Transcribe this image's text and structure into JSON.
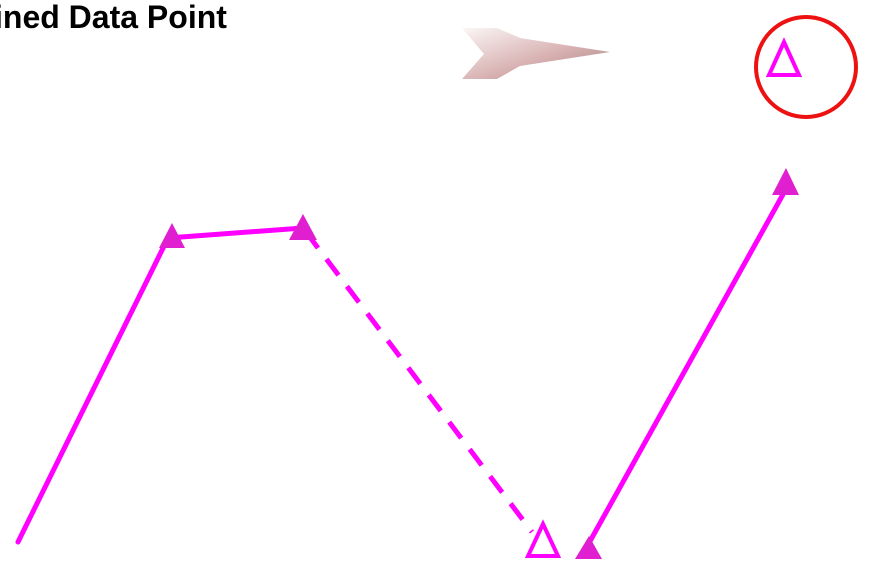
{
  "title": "ined Data Point",
  "colors": {
    "path": "#ff00ff",
    "marker_fill": "#e020d0",
    "highlight": "#ee1111",
    "arrow_light": "#f8f0f0",
    "arrow_dark": "#b89090"
  },
  "icons": {
    "arrow": "right-arrow-icon",
    "filled_marker": "filled-triangle-icon",
    "hollow_marker": "hollow-triangle-icon",
    "highlight": "circle-icon"
  }
}
